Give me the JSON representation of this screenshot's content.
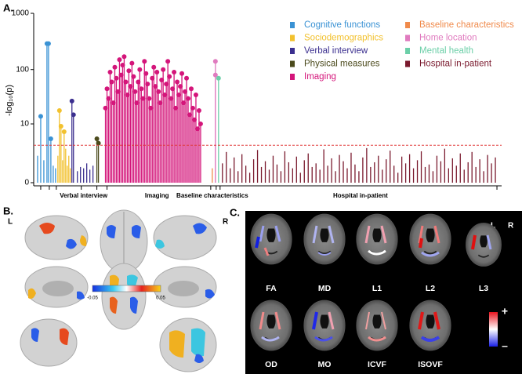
{
  "chart_data": {
    "type": "lollipop",
    "panel_label": "A.",
    "ylabel": "-log₁₀(p)",
    "yscale": "log1p",
    "ylim": [
      0,
      1000
    ],
    "yticks": [
      0,
      10,
      100,
      1000
    ],
    "xlim": [
      0,
      600
    ],
    "xticks": [
      9,
      20,
      29,
      61,
      81,
      94,
      227,
      234,
      239,
      594
    ],
    "group_labels": [
      {
        "value": 64,
        "label": "Verbal interview"
      },
      {
        "value": 158,
        "label": "Imaging"
      },
      {
        "value": 229,
        "label": "Baseline characteristics"
      },
      {
        "value": 419,
        "label": "Hospital in-patient"
      }
    ],
    "threshold": 3.6,
    "threshold_color": "#e03a3a",
    "series": [
      {
        "name": "Cognitive functions",
        "color": "#3a92d4",
        "x": [
          5,
          9,
          13,
          17,
          19,
          22,
          25,
          28
        ],
        "values": [
          2,
          14,
          1.5,
          290,
          290,
          5,
          1,
          0.8
        ]
      },
      {
        "name": "Sociodemographics",
        "color": "#f2c12e",
        "x": [
          31,
          33,
          35,
          37,
          39,
          41,
          43,
          45,
          47
        ],
        "values": [
          2,
          18,
          9,
          1.5,
          7,
          3,
          1,
          2,
          0.8
        ]
      },
      {
        "name": "Verbal interview",
        "color": "#3b2f8f",
        "x": [
          49,
          51,
          56,
          60,
          64,
          68,
          72,
          76
        ],
        "values": [
          27,
          15,
          0.6,
          0.9,
          0.8,
          1.2,
          0.7,
          1
        ]
      },
      {
        "name": "Physical measures",
        "color": "#4b4a1c",
        "x": [
          81,
          83
        ],
        "values": [
          5,
          4
        ]
      },
      {
        "name": "Imaging",
        "color": "#d4157a",
        "x": [
          92,
          94,
          96,
          98,
          100,
          102,
          104,
          106,
          108,
          110,
          112,
          114,
          116,
          118,
          120,
          122,
          124,
          126,
          128,
          130,
          132,
          134,
          136,
          138,
          140,
          142,
          144,
          146,
          148,
          150,
          152,
          154,
          156,
          158,
          160,
          162,
          164,
          166,
          168,
          170,
          172,
          174,
          176,
          178,
          180,
          182,
          184,
          186,
          188,
          190,
          192,
          194,
          196,
          198,
          200,
          202,
          204,
          206,
          208,
          210,
          212,
          214
        ],
        "values": [
          20,
          45,
          30,
          90,
          60,
          25,
          110,
          70,
          40,
          150,
          80,
          120,
          170,
          60,
          35,
          95,
          50,
          130,
          75,
          40,
          25,
          60,
          100,
          45,
          30,
          140,
          85,
          55,
          30,
          20,
          70,
          110,
          50,
          90,
          40,
          25,
          65,
          100,
          35,
          55,
          140,
          75,
          30,
          45,
          90,
          20,
          60,
          35,
          50,
          85,
          25,
          40,
          70,
          30,
          15,
          45,
          20,
          12,
          35,
          8,
          18,
          10
        ]
      },
      {
        "name": "Baseline characteristics",
        "color": "#f08a4b",
        "x": [
          229
        ],
        "values": [
          0.8
        ]
      },
      {
        "name": "Home location",
        "color": "#e07bbf",
        "x": [
          233,
          233
        ],
        "values": [
          140,
          80
        ]
      },
      {
        "name": "Mental health",
        "color": "#6ccfa8",
        "x": [
          237
        ],
        "values": [
          70
        ]
      },
      {
        "name": "Hospital in-patient",
        "color": "#7a1a2e",
        "x": [
          242,
          247,
          252,
          257,
          262,
          267,
          272,
          277,
          282,
          287,
          292,
          297,
          302,
          307,
          312,
          317,
          322,
          327,
          332,
          337,
          342,
          347,
          352,
          357,
          362,
          367,
          372,
          377,
          382,
          387,
          392,
          397,
          402,
          407,
          412,
          417,
          422,
          427,
          432,
          437,
          442,
          447,
          452,
          457,
          462,
          467,
          472,
          477,
          482,
          487,
          492,
          497,
          502,
          507,
          512,
          517,
          522,
          527,
          532,
          537,
          542,
          547,
          552,
          557,
          562,
          567,
          572,
          577,
          582,
          587,
          592
        ],
        "values": [
          1.2,
          2.5,
          0.8,
          1.8,
          0.6,
          2.2,
          1.0,
          0.5,
          1.6,
          2.8,
          0.9,
          1.4,
          0.7,
          2.0,
          1.1,
          0.6,
          2.6,
          1.3,
          0.8,
          1.9,
          0.5,
          1.5,
          2.3,
          0.9,
          1.2,
          0.7,
          2.9,
          1.0,
          1.7,
          0.6,
          2.1,
          1.4,
          0.8,
          2.4,
          1.1,
          0.6,
          1.8,
          3.1,
          0.9,
          1.3,
          2.0,
          0.7,
          1.6,
          2.7,
          1.0,
          0.5,
          1.9,
          1.2,
          2.2,
          0.8,
          1.5,
          2.6,
          0.9,
          1.1,
          0.6,
          2.0,
          1.4,
          3.0,
          0.8,
          1.7,
          1.0,
          2.3,
          0.7,
          1.3,
          2.5,
          0.9,
          1.6,
          0.6,
          2.1,
          1.2,
          1.8
        ]
      }
    ]
  },
  "panel_b": {
    "panel_label": "B.",
    "left": "L",
    "right": "R",
    "colorbar_labels": [
      "-0.05",
      "0.05"
    ]
  },
  "panel_c": {
    "panel_label": "C.",
    "left": "L",
    "right": "R",
    "measures": [
      "FA",
      "MD",
      "L1",
      "L2",
      "L3",
      "OD",
      "MO",
      "ICVF",
      "ISOVF"
    ],
    "colorbar_labels": [
      "+",
      "–"
    ]
  }
}
